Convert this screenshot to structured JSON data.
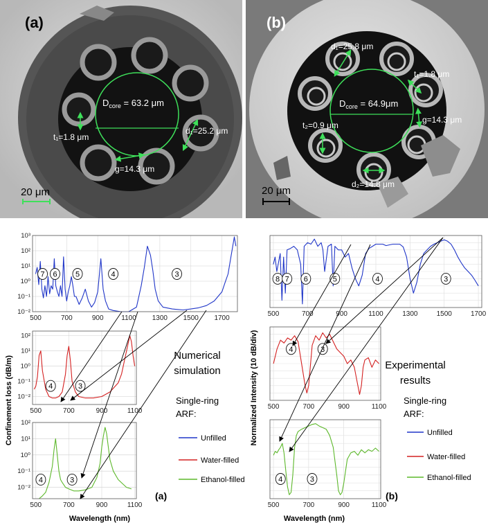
{
  "sem": {
    "a": {
      "panel_label": "(a)",
      "d_core": "D",
      "d_core_sub": "core",
      "d_core_val": " = 63.2 μm",
      "d1": "d₁=25.2 μm",
      "t1": "t₁=1.8 μm",
      "g": "g=14.3 μm",
      "scale": "20 μm"
    },
    "b": {
      "panel_label": "(b)",
      "d_core": "D",
      "d_core_sub": "core",
      "d_core_val": " = 64.9μm",
      "d1": "d₁=25.8 μm",
      "t1": "t₁=1.8 μm",
      "t2": "t₂=0.9 μm",
      "g": "g=14.3 μm",
      "d2": "d₂=14.8 μm",
      "scale": "20 μm"
    }
  },
  "text": {
    "ylabel_left": "Confinement loss (dB/m)",
    "ylabel_right": "Normalized Intensity (10 dB/div)",
    "xlabel": "Wavelength (nm)",
    "numerical_1": "Numerical",
    "numerical_2": "simulation",
    "experimental_1": "Experimental",
    "experimental_2": "results",
    "legend_title_1": "Single-ring",
    "legend_title_2": "ARF:",
    "legend_unfilled": "Unfilled",
    "legend_water": "Water-filled",
    "legend_ethanol": "Ethanol-filled",
    "panel_a": "(a)",
    "panel_b": "(b)"
  },
  "colors": {
    "unfilled": "#1f35c8",
    "water": "#d42020",
    "ethanol": "#5cb82a"
  },
  "chart_data": [
    {
      "type": "line",
      "id": "sim_unfilled",
      "yscale": "log",
      "xlim": [
        480,
        1800
      ],
      "ylim": [
        0.01,
        1000
      ],
      "xticks": [
        500,
        700,
        900,
        1100,
        1300,
        1500,
        1700
      ],
      "yticks": [
        "10⁻²",
        "10⁻¹",
        "10⁰",
        "10¹",
        "10²",
        "10³"
      ],
      "mode_labels": [
        {
          "x": 545,
          "y": 3,
          "label": "7"
        },
        {
          "x": 625,
          "y": 3,
          "label": "6"
        },
        {
          "x": 770,
          "y": 3,
          "label": "5"
        },
        {
          "x": 1000,
          "y": 3,
          "label": "4"
        },
        {
          "x": 1410,
          "y": 3,
          "label": "3"
        }
      ],
      "series": [
        {
          "color": "#1f35c8",
          "x": [
            500,
            510,
            520,
            530,
            540,
            550,
            560,
            570,
            580,
            590,
            600,
            610,
            620,
            630,
            640,
            650,
            660,
            670,
            680,
            690,
            700,
            710,
            720,
            730,
            740,
            750,
            760,
            780,
            800,
            820,
            840,
            860,
            880,
            900,
            920,
            935,
            950,
            970,
            1000,
            1050,
            1100,
            1150,
            1180,
            1200,
            1220,
            1240,
            1255,
            1270,
            1290,
            1320,
            1380,
            1450,
            1500,
            1550,
            1600,
            1650,
            1700,
            1720,
            1740,
            1760,
            1780,
            1790
          ],
          "y": [
            3,
            8,
            0.6,
            20,
            0.3,
            0.08,
            0.5,
            0.1,
            2,
            0.15,
            0.5,
            0.3,
            30,
            0.5,
            0.2,
            0.1,
            0.5,
            0.1,
            40,
            0.3,
            0.05,
            0.2,
            0.5,
            2,
            0.5,
            0.1,
            0.1,
            0.03,
            0.08,
            0.3,
            0.05,
            0.02,
            0.04,
            0.2,
            30,
            0.3,
            0.05,
            0.015,
            0.012,
            0.01,
            0.01,
            0.02,
            0.5,
            8,
            200,
            50,
            5,
            0.3,
            0.05,
            0.02,
            0.015,
            0.013,
            0.015,
            0.018,
            0.025,
            0.05,
            0.2,
            0.8,
            3,
            50,
            800,
            200
          ]
        }
      ]
    },
    {
      "type": "line",
      "id": "sim_water",
      "yscale": "log",
      "xlim": [
        480,
        1110
      ],
      "ylim": [
        0.003,
        200
      ],
      "xticks": [
        500,
        700,
        900,
        1100
      ],
      "yticks": [
        "10⁻²",
        "10⁻¹",
        "10⁰",
        "10¹",
        "10²"
      ],
      "mode_labels": [
        {
          "x": 590,
          "y": 0.05,
          "label": "4"
        },
        {
          "x": 770,
          "y": 0.05,
          "label": "3"
        }
      ],
      "series": [
        {
          "color": "#d42020",
          "x": [
            490,
            500,
            510,
            520,
            530,
            540,
            560,
            580,
            600,
            620,
            640,
            660,
            680,
            690,
            700,
            710,
            720,
            740,
            760,
            800,
            850,
            900,
            950,
            1000,
            1020,
            1040,
            1060,
            1070,
            1080,
            1090,
            1100
          ],
          "y": [
            0.03,
            0.05,
            0.2,
            5,
            10,
            0.5,
            0.03,
            0.01,
            0.008,
            0.008,
            0.01,
            0.02,
            0.3,
            5,
            20,
            2,
            0.1,
            0.02,
            0.01,
            0.008,
            0.008,
            0.01,
            0.02,
            0.08,
            0.3,
            3,
            30,
            100,
            40,
            5,
            1
          ]
        }
      ]
    },
    {
      "type": "line",
      "id": "sim_ethanol",
      "yscale": "log",
      "xlim": [
        480,
        1110
      ],
      "ylim": [
        0.002,
        100
      ],
      "xticks": [
        500,
        700,
        900,
        1100
      ],
      "yticks": [
        "10⁻²",
        "10⁻¹",
        "10⁰",
        "10¹",
        "10²"
      ],
      "mode_labels": [
        {
          "x": 530,
          "y": 0.03,
          "label": "4"
        },
        {
          "x": 720,
          "y": 0.03,
          "label": "3"
        }
      ],
      "series": [
        {
          "color": "#5cb82a",
          "x": [
            520,
            540,
            560,
            580,
            600,
            610,
            620,
            630,
            640,
            650,
            660,
            680,
            700,
            730,
            760,
            800,
            840,
            870,
            890,
            900,
            910,
            920,
            930,
            940,
            950,
            970,
            1000,
            1050,
            1080
          ],
          "y": [
            0.002,
            0.003,
            0.005,
            0.02,
            0.2,
            2,
            10,
            1,
            0.1,
            0.03,
            0.02,
            0.01,
            0.008,
            0.006,
            0.006,
            0.007,
            0.01,
            0.04,
            0.3,
            3,
            15,
            50,
            20,
            3,
            0.5,
            0.1,
            0.03,
            0.01,
            0.008
          ]
        }
      ]
    },
    {
      "type": "line",
      "id": "exp_unfilled",
      "xlim": [
        480,
        1720
      ],
      "ylim": [
        0,
        100
      ],
      "xticks": [
        500,
        700,
        900,
        1100,
        1300,
        1500,
        1700
      ],
      "mode_labels": [
        {
          "x": 525,
          "y": 40,
          "label": "8"
        },
        {
          "x": 580,
          "y": 40,
          "label": "7"
        },
        {
          "x": 690,
          "y": 40,
          "label": "6"
        },
        {
          "x": 860,
          "y": 40,
          "label": "5"
        },
        {
          "x": 1110,
          "y": 40,
          "label": "4"
        },
        {
          "x": 1510,
          "y": 40,
          "label": "3"
        }
      ],
      "series": [
        {
          "color": "#1f35c8",
          "x": [
            500,
            510,
            520,
            540,
            550,
            560,
            570,
            580,
            600,
            620,
            640,
            660,
            670,
            680,
            700,
            720,
            740,
            760,
            780,
            790,
            800,
            820,
            840,
            850,
            860,
            880,
            900,
            920,
            940,
            960,
            980,
            1000,
            1020,
            1040,
            1060,
            1080,
            1100,
            1120,
            1140,
            1160,
            1180,
            1200,
            1220,
            1240,
            1260,
            1280,
            1300,
            1320,
            1340,
            1360,
            1380,
            1400,
            1420,
            1440,
            1460,
            1480,
            1500,
            1520,
            1540,
            1560,
            1580,
            1600,
            1620,
            1640,
            1660,
            1680,
            1700
          ],
          "y": [
            60,
            70,
            50,
            75,
            10,
            70,
            20,
            80,
            82,
            85,
            80,
            60,
            5,
            85,
            90,
            88,
            95,
            85,
            90,
            80,
            50,
            85,
            88,
            30,
            85,
            80,
            80,
            70,
            75,
            55,
            40,
            30,
            45,
            75,
            82,
            85,
            88,
            88,
            88,
            86,
            87,
            88,
            88,
            88,
            84,
            70,
            40,
            20,
            35,
            60,
            75,
            80,
            85,
            88,
            90,
            92,
            94,
            92,
            88,
            80,
            70,
            62,
            55,
            50,
            45,
            38,
            30
          ]
        }
      ]
    },
    {
      "type": "line",
      "id": "exp_water",
      "xlim": [
        480,
        1110
      ],
      "ylim": [
        0,
        100
      ],
      "xticks": [
        500,
        700,
        900,
        1100
      ],
      "mode_labels": [
        {
          "x": 600,
          "y": 70,
          "label": "4"
        },
        {
          "x": 780,
          "y": 70,
          "label": "3"
        }
      ],
      "series": [
        {
          "color": "#d42020",
          "x": [
            500,
            520,
            540,
            560,
            580,
            600,
            620,
            640,
            660,
            680,
            690,
            700,
            720,
            740,
            760,
            780,
            800,
            820,
            840,
            860,
            880,
            900,
            920,
            940,
            960,
            980,
            990,
            1000,
            1010,
            1020,
            1040,
            1060,
            1080,
            1100
          ],
          "y": [
            50,
            70,
            82,
            78,
            85,
            82,
            88,
            80,
            50,
            20,
            10,
            20,
            75,
            88,
            82,
            92,
            85,
            90,
            80,
            70,
            65,
            60,
            50,
            55,
            45,
            20,
            8,
            20,
            45,
            55,
            58,
            45,
            55,
            50
          ]
        }
      ]
    },
    {
      "type": "line",
      "id": "exp_ethanol",
      "xlim": [
        480,
        1110
      ],
      "ylim": [
        0,
        100
      ],
      "xticks": [
        500,
        700,
        900,
        1100
      ],
      "mode_labels": [
        {
          "x": 540,
          "y": 25,
          "label": "4"
        },
        {
          "x": 720,
          "y": 25,
          "label": "3"
        }
      ],
      "series": [
        {
          "color": "#5cb82a",
          "x": [
            500,
            510,
            520,
            530,
            540,
            550,
            560,
            570,
            580,
            590,
            600,
            610,
            620,
            630,
            640,
            660,
            680,
            700,
            720,
            740,
            760,
            780,
            800,
            820,
            840,
            860,
            870,
            880,
            890,
            900,
            920,
            940,
            960,
            980,
            1000,
            1020,
            1040,
            1060,
            1080,
            1100
          ],
          "y": [
            55,
            60,
            58,
            62,
            65,
            70,
            58,
            35,
            15,
            5,
            8,
            30,
            65,
            80,
            85,
            88,
            90,
            92,
            94,
            95,
            92,
            90,
            88,
            80,
            65,
            30,
            10,
            5,
            8,
            20,
            50,
            58,
            60,
            55,
            62,
            58,
            62,
            60,
            64,
            60
          ]
        }
      ]
    }
  ]
}
